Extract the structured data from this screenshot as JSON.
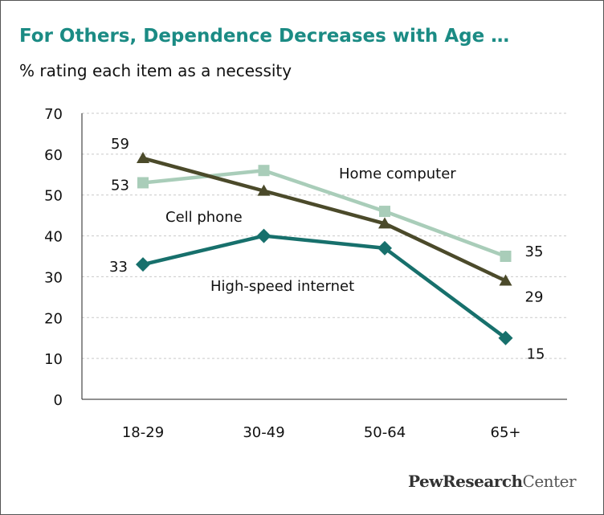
{
  "title": "For Others, Dependence Decreases with Age …",
  "subtitle": "% rating each item as a necessity",
  "logo": {
    "bold": "PewResearch",
    "normal": "Center"
  },
  "chart_data": {
    "type": "line",
    "categories": [
      "18-29",
      "30-49",
      "50-64",
      "65+"
    ],
    "ylim": [
      0,
      70
    ],
    "yticks": [
      0,
      10,
      20,
      30,
      40,
      50,
      60,
      70
    ],
    "grid": true,
    "xlabel": "",
    "ylabel": "",
    "series": [
      {
        "name": "Home computer",
        "values": [
          53,
          56,
          46,
          35
        ],
        "color": "#a9cdb9",
        "marker": "square",
        "shown_labels": [
          "53",
          "",
          "",
          "35"
        ]
      },
      {
        "name": "Cell phone",
        "values": [
          59,
          51,
          43,
          29
        ],
        "color": "#4b4a2a",
        "marker": "triangle",
        "shown_labels": [
          "59",
          "",
          "",
          "29"
        ]
      },
      {
        "name": "High-speed internet",
        "values": [
          33,
          40,
          37,
          15
        ],
        "color": "#17706c",
        "marker": "diamond",
        "shown_labels": [
          "33",
          "",
          "",
          "15"
        ]
      }
    ]
  }
}
